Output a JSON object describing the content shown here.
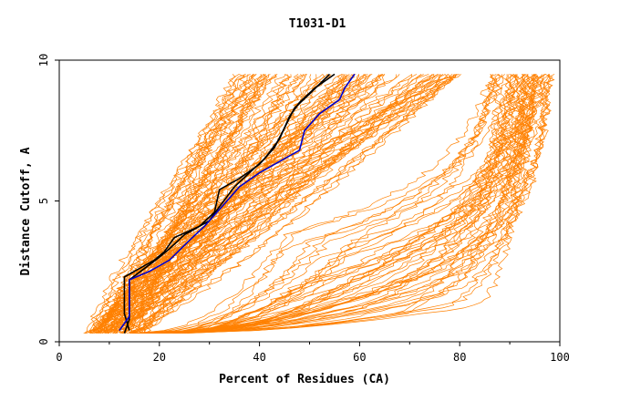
{
  "chart_data": {
    "type": "line",
    "title": "T1031-D1",
    "xlabel": "Percent of Residues (CA)",
    "ylabel": "Distance Cutoff, A",
    "xlim": [
      0,
      100
    ],
    "ylim": [
      0,
      10
    ],
    "xticks": [
      0,
      20,
      40,
      60,
      80,
      100
    ],
    "yticks": [
      0,
      5,
      10
    ],
    "grid": false,
    "legend": "none",
    "colors": {
      "background_models": "#ff8000",
      "highlight_black": "#000000",
      "highlight_blue": "#0000cc"
    },
    "background_models_description": "about 150 orange step curves",
    "highlighted_series": [
      {
        "color": "#000000",
        "points": [
          [
            13,
            0.3
          ],
          [
            14,
            0.8
          ],
          [
            14,
            2.2
          ],
          [
            17,
            2.6
          ],
          [
            20,
            3.0
          ],
          [
            22,
            3.3
          ],
          [
            25,
            3.8
          ],
          [
            30,
            4.3
          ],
          [
            32,
            4.8
          ],
          [
            35,
            5.5
          ],
          [
            38,
            6.0
          ],
          [
            41,
            6.5
          ],
          [
            44,
            7.2
          ],
          [
            46,
            8.0
          ],
          [
            48,
            8.5
          ],
          [
            51,
            9.0
          ],
          [
            55,
            9.5
          ]
        ]
      },
      {
        "color": "#000000",
        "points": [
          [
            14,
            0.4
          ],
          [
            13,
            1.0
          ],
          [
            13,
            2.3
          ],
          [
            16,
            2.6
          ],
          [
            19,
            2.9
          ],
          [
            21,
            3.2
          ],
          [
            23,
            3.7
          ],
          [
            28,
            4.1
          ],
          [
            31,
            4.6
          ],
          [
            32,
            5.4
          ],
          [
            36,
            5.8
          ],
          [
            40,
            6.3
          ],
          [
            43,
            6.9
          ],
          [
            45,
            7.6
          ],
          [
            47,
            8.3
          ],
          [
            50,
            8.8
          ],
          [
            54,
            9.5
          ]
        ]
      },
      {
        "color": "#0000cc",
        "points": [
          [
            12,
            0.4
          ],
          [
            14,
            0.9
          ],
          [
            14,
            2.2
          ],
          [
            18,
            2.5
          ],
          [
            22,
            2.9
          ],
          [
            26,
            3.6
          ],
          [
            29,
            4.1
          ],
          [
            33,
            4.9
          ],
          [
            36,
            5.5
          ],
          [
            40,
            6.0
          ],
          [
            44,
            6.4
          ],
          [
            48,
            6.8
          ],
          [
            49,
            7.5
          ],
          [
            52,
            8.1
          ],
          [
            56,
            8.6
          ],
          [
            57,
            9.0
          ],
          [
            59,
            9.5
          ]
        ]
      }
    ]
  }
}
